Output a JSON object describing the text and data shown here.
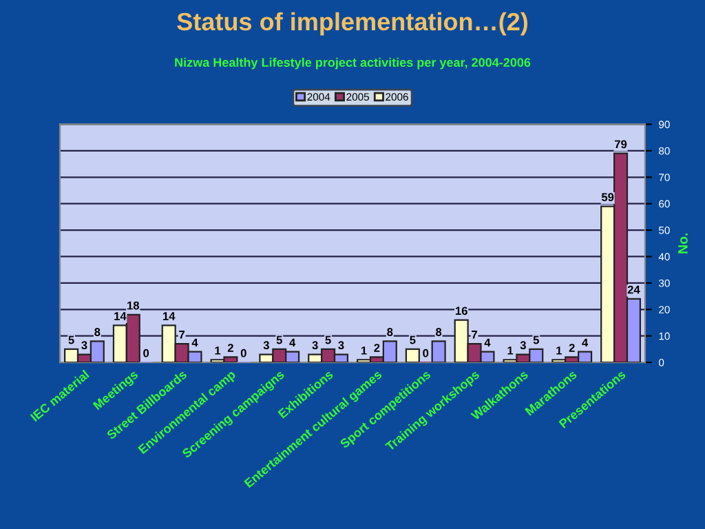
{
  "chart_data": {
    "type": "bar",
    "title": "Status of implementation…(2)",
    "subtitle": "Nizwa Healthy Lifestyle project activities per year, 2004-2006",
    "ylabel": "No.",
    "categories": [
      "IEC material",
      "Meetings",
      "Street Billboards",
      "Environmental camp",
      "Screening campaigns",
      "Exhibitions",
      "Entertainment cultural games",
      "Sport competitions",
      "Training workshops",
      "Walkathons",
      "Marathons",
      "Presentations"
    ],
    "series": [
      {
        "name": "2006",
        "color": "#ffffcc",
        "values": [
          5,
          14,
          14,
          1,
          3,
          3,
          1,
          5,
          16,
          1,
          1,
          59
        ]
      },
      {
        "name": "2005",
        "color": "#993366",
        "values": [
          3,
          18,
          7,
          2,
          5,
          5,
          2,
          0,
          7,
          3,
          2,
          79
        ]
      },
      {
        "name": "2004",
        "color": "#9999ff",
        "values": [
          8,
          0,
          4,
          0,
          4,
          3,
          8,
          8,
          4,
          5,
          4,
          24
        ]
      }
    ],
    "ylim": [
      0,
      90
    ],
    "yticks": [
      0,
      10,
      20,
      30,
      40,
      50,
      60,
      70,
      80,
      90
    ],
    "grid": "y",
    "legend": "top",
    "data_labels": true
  }
}
